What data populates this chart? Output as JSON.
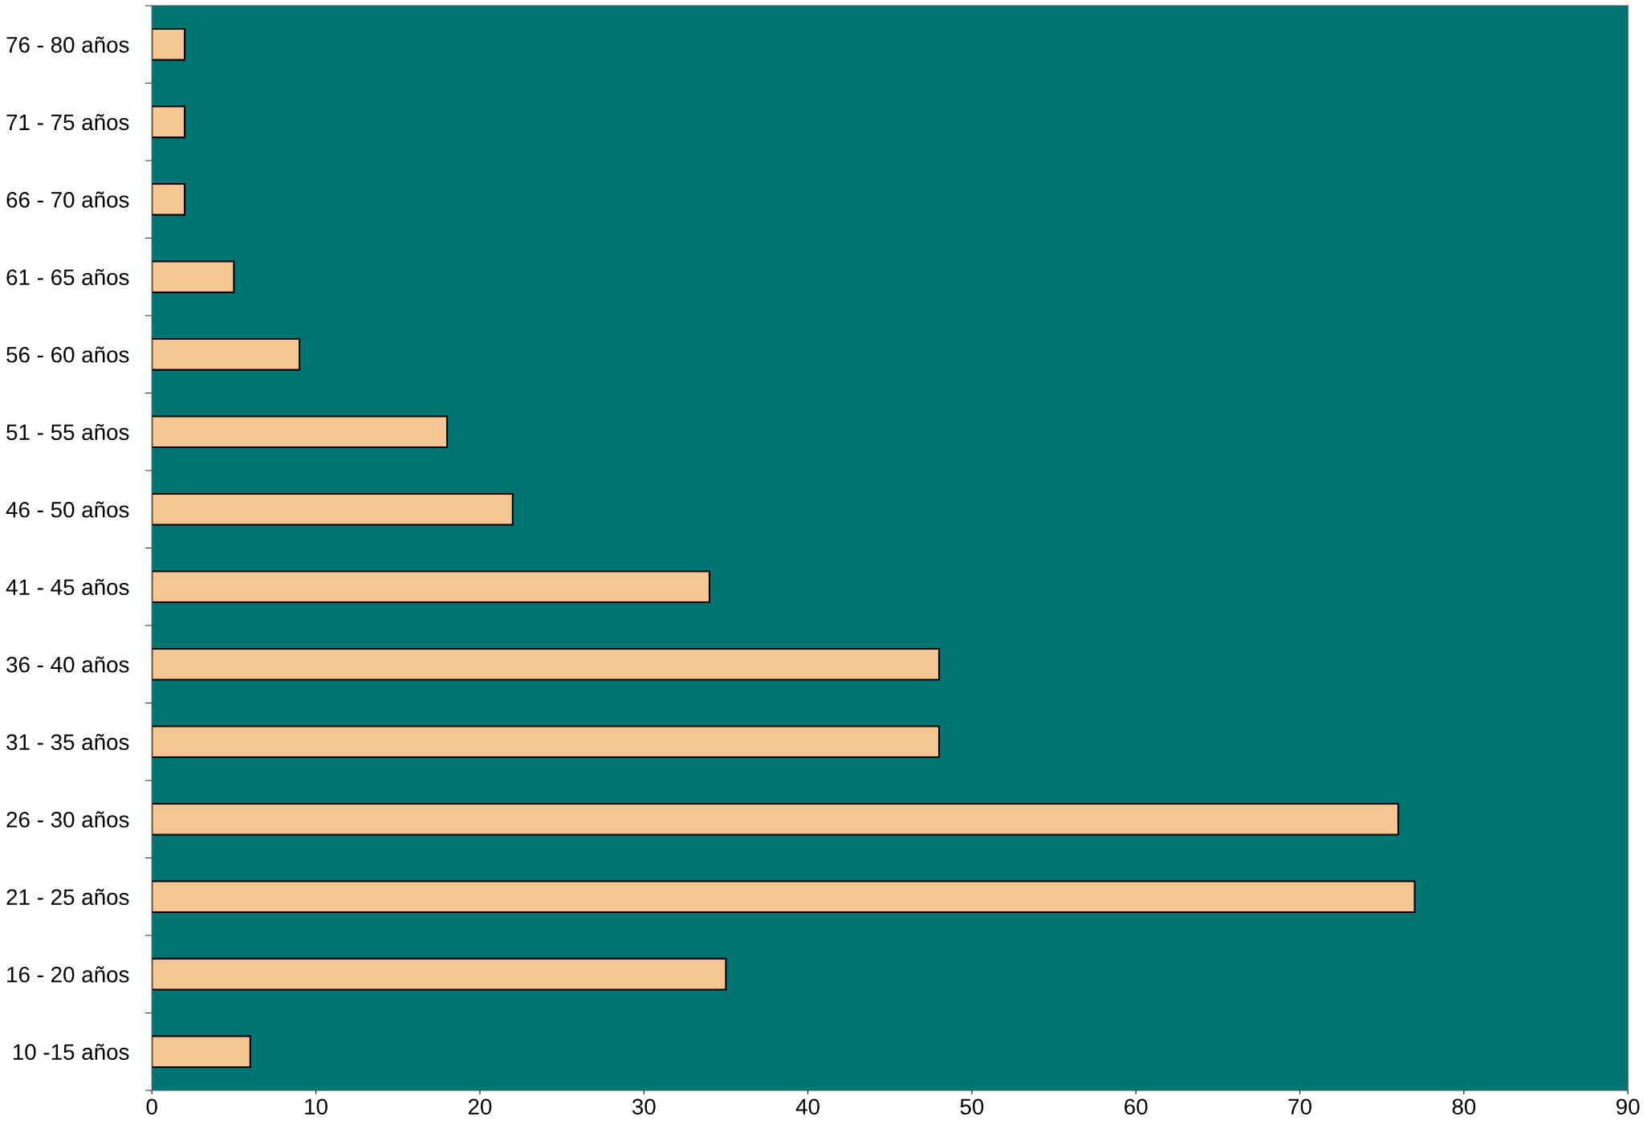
{
  "chart_data": {
    "type": "bar",
    "orientation": "horizontal",
    "categories": [
      "76 - 80 años",
      "71 - 75 años",
      "66 - 70 años",
      "61 - 65 años",
      "56 - 60 años",
      "51 - 55 años",
      "46 - 50 años",
      "41 - 45 años",
      "36 - 40 años",
      "31 - 35 años",
      "26 - 30 años",
      "21 - 25 años",
      "16 - 20 años",
      "10 -15 años"
    ],
    "values": [
      2,
      2,
      2,
      5,
      9,
      18,
      22,
      34,
      48,
      48,
      76,
      77,
      35,
      6
    ],
    "color": "#f5c594",
    "xlim": [
      0,
      90
    ],
    "xticks": [
      0,
      10,
      20,
      30,
      40,
      50,
      60,
      70,
      80,
      90
    ],
    "grid": false,
    "legend": false
  }
}
